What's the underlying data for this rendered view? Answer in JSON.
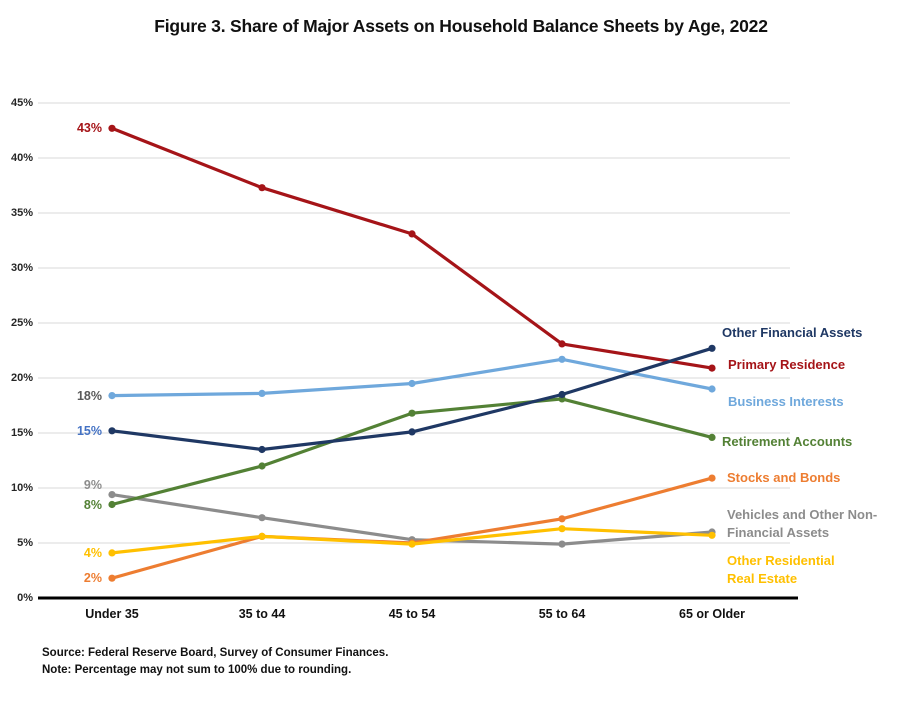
{
  "title": "Figure 3. Share of Major Assets on Household Balance Sheets by Age, 2022",
  "footer": {
    "source": "Source: Federal Reserve Board, Survey of Consumer Finances.",
    "note": "Note: Percentage may not sum to 100% due to rounding."
  },
  "chart_data": {
    "type": "line",
    "title": "Figure 3. Share of Major Assets on Household Balance Sheets by Age, 2022",
    "categories": [
      "Under 35",
      "35 to 44",
      "45 to 54",
      "55 to 64",
      "65 or Older"
    ],
    "xlabel": "",
    "ylabel": "",
    "ylim": [
      0,
      45
    ],
    "ytick_step": 5,
    "ytick_suffix": "%",
    "grid": true,
    "gridline_color": "#D9D9D9",
    "axis_color": "#000000",
    "legend_position": "right-of-plot",
    "series": [
      {
        "name": "Other Financial Assets",
        "color": "#1F3864",
        "values": [
          15.2,
          13.5,
          15.1,
          18.5,
          22.7
        ],
        "start_label": "15%",
        "start_label_color": "#4472C4",
        "legend_lines": [
          "Other Financial Assets"
        ]
      },
      {
        "name": "Primary Residence",
        "color": "#A51418",
        "values": [
          42.7,
          37.3,
          33.1,
          23.1,
          20.9
        ],
        "start_label": "43%",
        "start_label_color": "#A51418",
        "legend_lines": [
          "Primary Residence"
        ]
      },
      {
        "name": "Business Interests",
        "color": "#6FA8DC",
        "values": [
          18.4,
          18.6,
          19.5,
          21.7,
          19.0
        ],
        "start_label": "18%",
        "start_label_color": "#595959",
        "legend_lines": [
          "Business Interests"
        ]
      },
      {
        "name": "Retirement Accounts",
        "color": "#538135",
        "values": [
          8.5,
          12.0,
          16.8,
          18.1,
          14.6
        ],
        "start_label": "8%",
        "start_label_color": "#538135",
        "legend_lines": [
          "Retirement Accounts"
        ]
      },
      {
        "name": "Stocks and Bonds",
        "color": "#ED7D31",
        "values": [
          1.8,
          5.6,
          5.0,
          7.2,
          10.9
        ],
        "start_label": "2%",
        "start_label_color": "#ED7D31",
        "legend_lines": [
          "Stocks and Bonds"
        ]
      },
      {
        "name": "Vehicles and Other Non-Financial Assets",
        "color": "#8C8C8C",
        "values": [
          9.4,
          7.3,
          5.3,
          4.9,
          6.0
        ],
        "start_label": "9%",
        "start_label_color": "#8C8C8C",
        "legend_lines": [
          "Vehicles and Other Non-",
          "Financial Assets"
        ]
      },
      {
        "name": "Other Residential Real Estate",
        "color": "#FFC000",
        "values": [
          4.1,
          5.6,
          4.9,
          6.3,
          5.7
        ],
        "start_label": "4%",
        "start_label_color": "#FFC000",
        "legend_lines": [
          "Other Residential",
          "Real Estate"
        ]
      }
    ]
  }
}
